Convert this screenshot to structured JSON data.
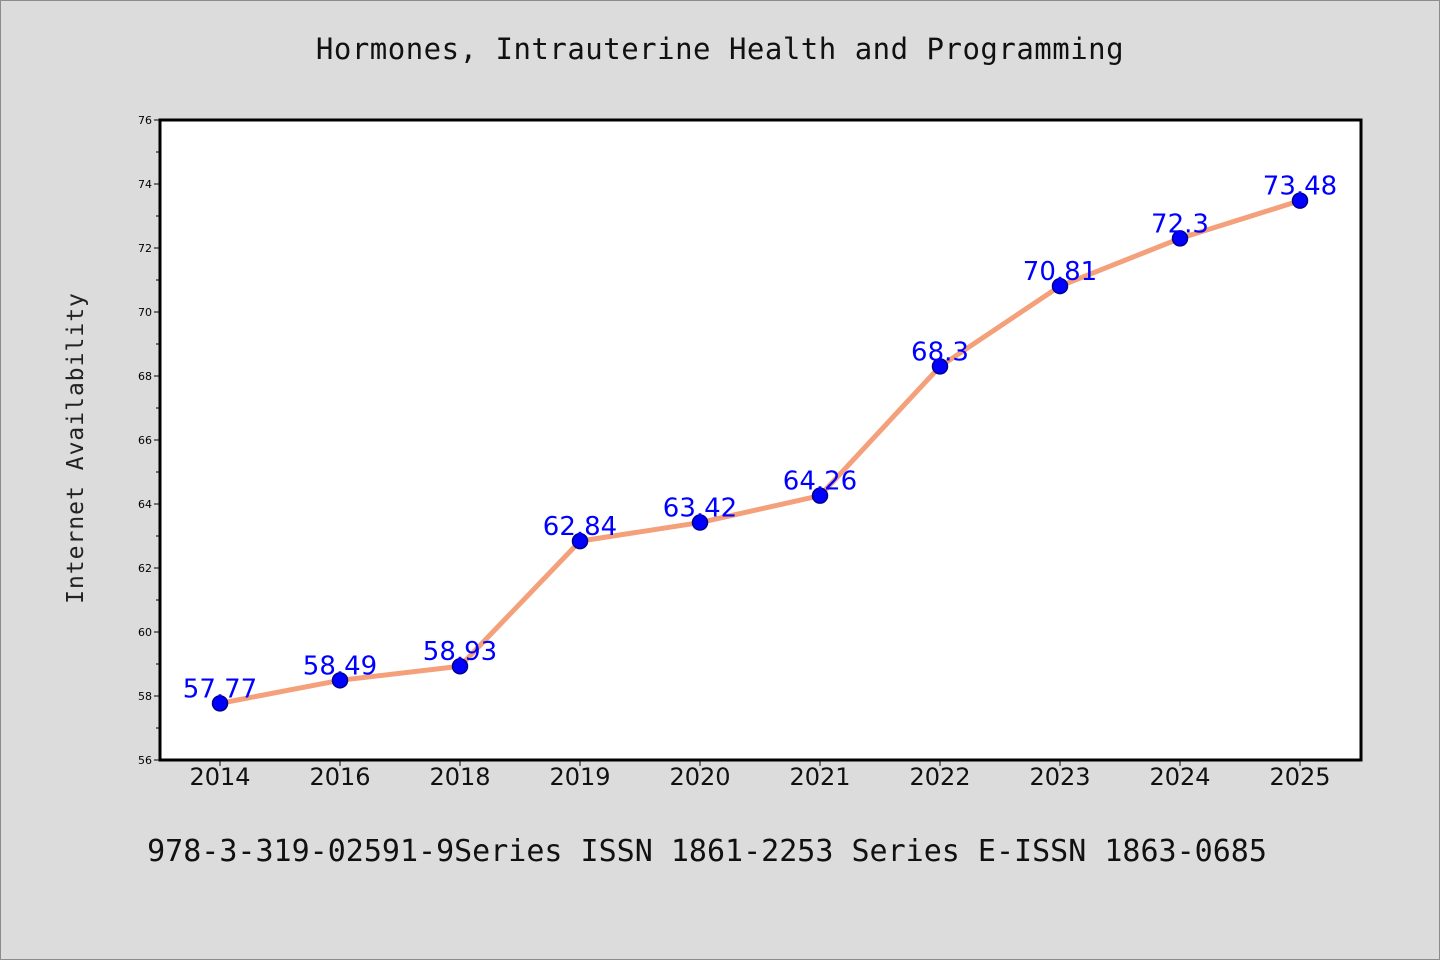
{
  "chart_data": {
    "type": "line",
    "title": "Hormones, Intrauterine Health and Programming",
    "footer": "978-3-319-02591-9Series ISSN 1861-2253 Series E-ISSN 1863-0685",
    "xlabel": "",
    "ylabel": "Internet Availability",
    "categories": [
      "2014",
      "2016",
      "2018",
      "2019",
      "2020",
      "2021",
      "2022",
      "2023",
      "2024",
      "2025"
    ],
    "series": [
      {
        "values": [
          57.77,
          58.49,
          58.93,
          62.84,
          63.42,
          64.26,
          68.3,
          70.81,
          72.3,
          73.48
        ],
        "data_labels": [
          "57.77",
          "58.49",
          "58.93",
          "62.84",
          "63.42",
          "64.26",
          "68.3",
          "70.81",
          "72.3",
          "73.48"
        ]
      }
    ],
    "ylim": [
      56,
      76
    ],
    "yticks": [
      56,
      58,
      60,
      62,
      64,
      66,
      68,
      70,
      72,
      74,
      76
    ],
    "grid": false,
    "legend": "none",
    "colors": {
      "line": "#f4a07a",
      "marker": "#0000ff",
      "marker_edge": "#00008b",
      "label": "#0000ff",
      "background": "#dcdcdc",
      "plot_background": "#ffffff"
    }
  }
}
